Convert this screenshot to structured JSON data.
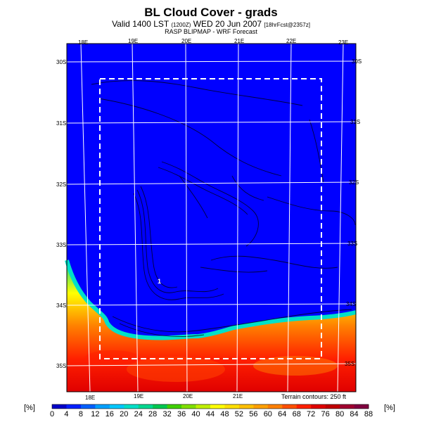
{
  "header": {
    "title": "BL Cloud Cover - grads",
    "subtitle_main": "Valid 1400 LST",
    "subtitle_code": "(1200Z)",
    "subtitle_date": "WED 20 Jun 2007",
    "subtitle_fcst": "[18hrFcst@2357z]",
    "source": "RASP BLIPMAP - WRF Forecast"
  },
  "map": {
    "lon_labels_top": [
      "18E",
      "19E",
      "20E",
      "21E",
      "22E",
      "23E"
    ],
    "lon_labels_bottom": [
      "18E",
      "19E",
      "20E",
      "21E"
    ],
    "lat_labels_left": [
      "30S",
      "31S",
      "32S",
      "33S",
      "34S",
      "35S"
    ],
    "lat_labels_right": [
      "30S",
      "31S",
      "32S",
      "33S",
      "34S",
      "35S"
    ],
    "point_label": "1",
    "terrain_note": "Terrain contours: 250 ft"
  },
  "colorbar": {
    "unit_left": "[%]",
    "unit_right": "[%]",
    "ticks": [
      "0",
      "4",
      "8",
      "12",
      "16",
      "20",
      "24",
      "28",
      "32",
      "36",
      "40",
      "44",
      "48",
      "52",
      "56",
      "60",
      "64",
      "68",
      "72",
      "76",
      "80",
      "84",
      "88"
    ],
    "colors": [
      "#0000c8",
      "#0020ff",
      "#0060ff",
      "#00a0ff",
      "#00c8ff",
      "#00e0c8",
      "#00d890",
      "#00c850",
      "#40d000",
      "#80e000",
      "#c0f000",
      "#ffff00",
      "#ffe000",
      "#ffc000",
      "#ffa000",
      "#ff8000",
      "#ff5000",
      "#ff2000",
      "#e00000",
      "#c00000",
      "#a00030",
      "#800040"
    ]
  }
}
